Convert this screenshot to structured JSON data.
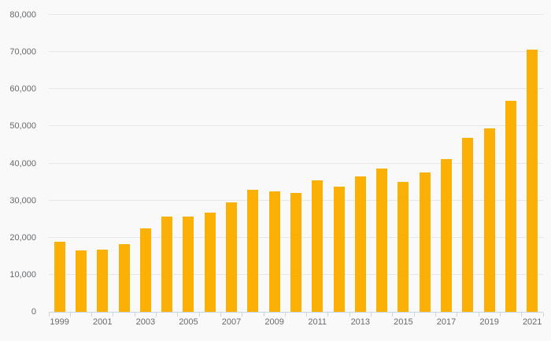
{
  "chart_data": {
    "type": "bar",
    "categories": [
      "1999",
      "2000",
      "2001",
      "2002",
      "2003",
      "2004",
      "2005",
      "2006",
      "2007",
      "2008",
      "2009",
      "2010",
      "2011",
      "2012",
      "2013",
      "2014",
      "2015",
      "2016",
      "2017",
      "2018",
      "2019",
      "2020",
      "2021"
    ],
    "values": [
      18800,
      16500,
      16800,
      18200,
      22600,
      25700,
      25600,
      26700,
      29600,
      32900,
      32400,
      32000,
      35400,
      33700,
      36600,
      38700,
      35100,
      37500,
      41200,
      46900,
      49400,
      56800,
      70700
    ],
    "x_tick_labels": [
      "1999",
      "2001",
      "2003",
      "2005",
      "2007",
      "2009",
      "2011",
      "2013",
      "2015",
      "2017",
      "2019",
      "2021"
    ],
    "y_ticks": [
      0,
      10000,
      20000,
      30000,
      40000,
      50000,
      60000,
      70000,
      80000
    ],
    "y_tick_labels": [
      "0",
      "10,000",
      "20,000",
      "30,000",
      "40,000",
      "50,000",
      "60,000",
      "70,000",
      "80,000"
    ],
    "ylim": [
      0,
      80000
    ],
    "xlabel": "",
    "ylabel": "",
    "grid": true,
    "legend": false,
    "colors": {
      "bar": "#FAB005",
      "background": "#F9F9F9",
      "gridline": "#E7E7E7",
      "axis_line": "#C9D4E4",
      "label_text": "#66696E"
    }
  }
}
